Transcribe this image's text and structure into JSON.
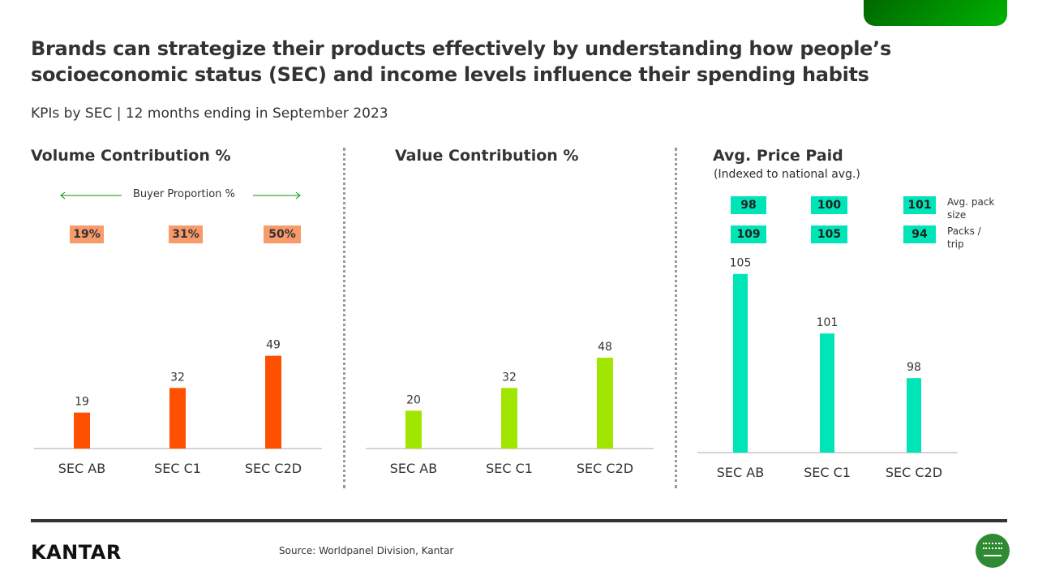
{
  "header": {
    "title": "Brands can strategize their products effectively by understanding how people’s socioeconomic status (SEC)  and income levels influence their spending habits",
    "subtitle": "KPIs by SEC | 12 months ending in September 2023"
  },
  "colors": {
    "volume": "#ff5000",
    "value": "#a0e600",
    "price": "#00e5b8",
    "accent_green": "#009900"
  },
  "buyer_proportion": {
    "label": "Buyer Proportion %",
    "values": [
      "19%",
      "31%",
      "50%"
    ]
  },
  "price_kpis": {
    "rows": [
      {
        "label": "Avg. pack size",
        "values": [
          "98",
          "100",
          "101"
        ]
      },
      {
        "label": "Packs / trip",
        "values": [
          "109",
          "105",
          "94"
        ]
      }
    ]
  },
  "chart_data": [
    {
      "type": "bar",
      "title": "Volume Contribution %",
      "categories": [
        "SEC AB",
        "SEC C1",
        "SEC C2D"
      ],
      "values": [
        19,
        32,
        49
      ],
      "ylim": [
        0,
        60
      ],
      "grid": false
    },
    {
      "type": "bar",
      "title": "Value Contribution %",
      "categories": [
        "SEC AB",
        "SEC C1",
        "SEC C2D"
      ],
      "values": [
        20,
        32,
        48
      ],
      "ylim": [
        0,
        60
      ],
      "grid": false
    },
    {
      "type": "bar",
      "title": "Avg. Price Paid",
      "subtitle": "(Indexed to national avg.)",
      "categories": [
        "SEC AB",
        "SEC C1",
        "SEC C2D"
      ],
      "values": [
        105,
        101,
        98
      ],
      "ylim": [
        93,
        107
      ],
      "grid": false
    }
  ],
  "footer": {
    "logo": "KANTAR",
    "source": "Source: Worldpanel Division,  Kantar"
  }
}
